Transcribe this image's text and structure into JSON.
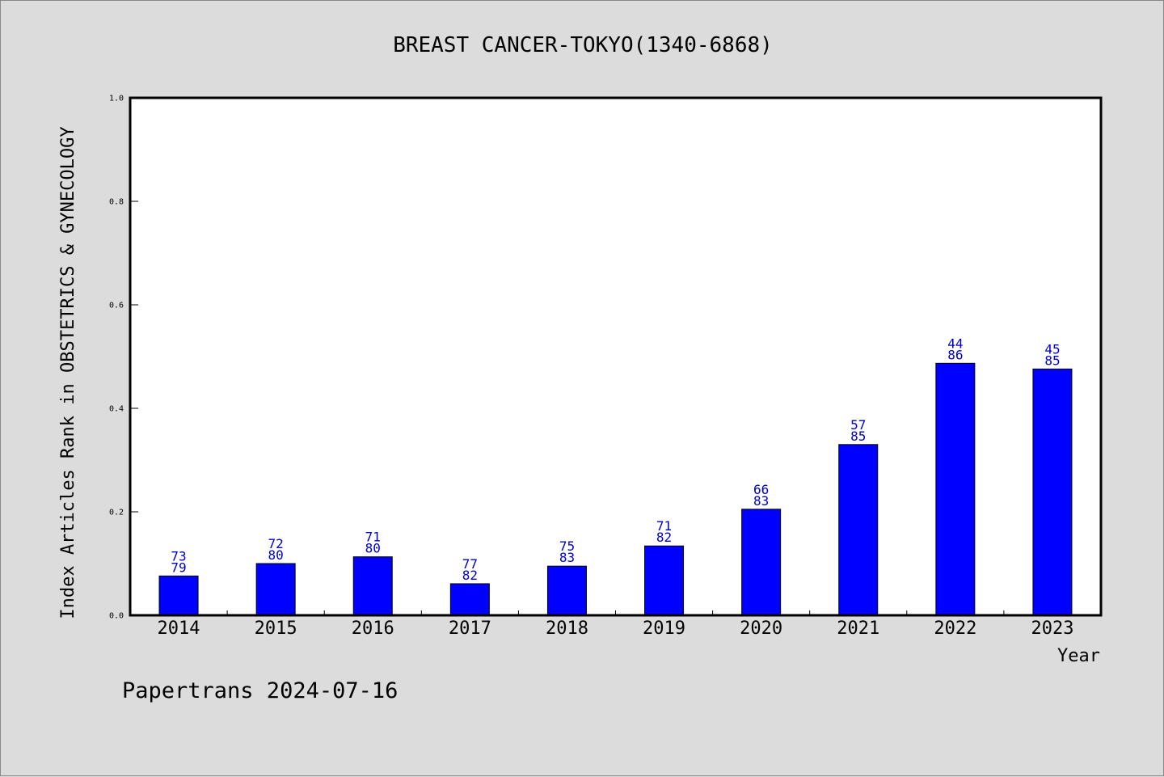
{
  "footer": "Papertrans 2024-07-16",
  "colors": {
    "bar": "#0000ff",
    "label": "#0000cc",
    "axis": "#000000",
    "background": "#dcdcdc",
    "plot": "#ffffff"
  },
  "chart_data": {
    "type": "bar",
    "title": "BREAST CANCER-TOKYO(1340-6868)",
    "xlabel": "Year",
    "ylabel": "Index Articles Rank in OBSTETRICS & GYNECOLOGY",
    "ylim": [
      0,
      1.0
    ],
    "yticks": [
      "0.0",
      "0.2",
      "0.4",
      "0.6",
      "0.8",
      "1.0"
    ],
    "categories": [
      "2014",
      "2015",
      "2016",
      "2017",
      "2018",
      "2019",
      "2020",
      "2021",
      "2022",
      "2023"
    ],
    "values": [
      0.076,
      0.1,
      0.113,
      0.061,
      0.095,
      0.134,
      0.205,
      0.33,
      0.487,
      0.476
    ],
    "labels_top": [
      "73",
      "72",
      "71",
      "77",
      "75",
      "71",
      "66",
      "57",
      "44",
      "45"
    ],
    "labels_bottom": [
      "79",
      "80",
      "80",
      "82",
      "83",
      "82",
      "83",
      "85",
      "86",
      "85"
    ],
    "grid": false,
    "legend": "none"
  }
}
